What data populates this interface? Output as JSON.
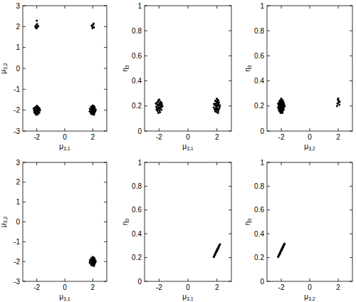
{
  "chart_data": [
    {
      "type": "scatter",
      "x_label": "μ3,1",
      "y_label": "μ3,2",
      "xlim": [
        -3,
        3
      ],
      "ylim": [
        -3,
        3
      ],
      "xticks": [
        -2,
        0,
        2
      ],
      "yticks": [
        -3,
        -2,
        -1,
        0,
        1,
        2,
        3
      ],
      "color": "#000000",
      "marker": "dot",
      "x": [
        -2,
        -2.12,
        -1.85,
        -1.94,
        -2.08,
        -1.8,
        -2.19,
        -1.97,
        -1.89,
        -2.04,
        -2.15,
        -1.83,
        -1.91,
        -2.02,
        -1.95,
        -2.07,
        -1.87,
        -2.11,
        -1.98,
        -2.22,
        -1.77,
        -1.93,
        -2.05,
        -1.9,
        -2.13,
        -1.99,
        -2.09,
        -1.82,
        -2.17,
        -1.96,
        2.01,
        2.04,
        1.97,
        2.11,
        1.9,
        2.05,
        1.98,
        1.84,
        2.14,
        2.18,
        2.1,
        1.88,
        1.94,
        1.95,
        2.04,
        2.02,
        2.02,
        1.85,
        2.21,
        2.08,
        1.99,
        1.8,
        1.78,
        2.09,
        1.94,
        2.07,
        2.14,
        2.1,
        1.89,
        1.9,
        -2.05,
        -1.95,
        -2.1,
        -1.98,
        -2.02,
        -1.9,
        -2.08,
        -2,
        1.95,
        2.03,
        2.08,
        1.98,
        2.05,
        1.92
      ],
      "values": [
        -1.99,
        -1.96,
        -2.03,
        -1.89,
        -2.1,
        -1.95,
        -2.02,
        -2.16,
        -1.86,
        -1.82,
        -1.9,
        -2.12,
        -2.06,
        -2.05,
        -1.96,
        -1.98,
        -1.98,
        -2.15,
        -1.79,
        -1.92,
        -2.01,
        -2.2,
        -2.22,
        -1.91,
        -2.06,
        -1.93,
        -1.86,
        -1.9,
        -2.11,
        -2.1,
        -2,
        -2.12,
        -1.85,
        -1.94,
        -2.08,
        -1.8,
        -2.19,
        -1.97,
        -1.89,
        -2.04,
        -2.15,
        -1.83,
        -1.91,
        -2.02,
        -1.95,
        -2.07,
        -1.87,
        -2.11,
        -1.98,
        -2.22,
        -1.77,
        -1.93,
        -2.05,
        -1.9,
        -2.13,
        -1.99,
        -2.09,
        -1.82,
        -2.17,
        -1.96,
        2.05,
        1.98,
        2.01,
        2.12,
        1.92,
        2.03,
        1.96,
        2.28,
        2.02,
        2.1,
        1.97,
        1.93,
        2.15,
        2.05
      ]
    },
    {
      "type": "scatter",
      "x_label": "μ3,1",
      "y_label": "η3",
      "xlim": [
        -3,
        3
      ],
      "ylim": [
        0,
        1
      ],
      "xticks": [
        -2,
        0,
        2
      ],
      "yticks": [
        0,
        0.2,
        0.4,
        0.6,
        0.8,
        1
      ],
      "color": "#000000",
      "marker": "dot",
      "x": [
        -2,
        -2.12,
        -1.85,
        -1.94,
        -2.08,
        -1.8,
        -2.19,
        -1.97,
        -1.89,
        -2.04,
        -2.15,
        -1.83,
        -1.91,
        -2.02,
        -1.95,
        -2.07,
        -1.87,
        -2.11,
        -1.98,
        -2.22,
        -1.77,
        -1.93,
        -2.05,
        -1.9,
        -2.13,
        -1.99,
        -2.09,
        -1.82,
        -2.17,
        -1.96,
        2.01,
        2.04,
        1.97,
        2.11,
        1.9,
        2.05,
        1.98,
        1.84,
        2.14,
        2.18,
        2.1,
        1.88,
        1.94,
        1.95,
        2.04,
        2.02,
        2.02,
        1.85,
        2.21,
        2.08,
        1.99,
        1.8,
        1.78,
        2.09,
        1.94,
        2.07,
        2.14,
        2.1,
        1.89,
        1.9
      ],
      "values": [
        0.202,
        0.21,
        0.192,
        0.228,
        0.175,
        0.212,
        0.195,
        0.16,
        0.235,
        0.245,
        0.225,
        0.17,
        0.185,
        0.188,
        0.21,
        0.205,
        0.205,
        0.162,
        0.252,
        0.22,
        0.198,
        0.15,
        0.145,
        0.222,
        0.185,
        0.218,
        0.235,
        0.225,
        0.172,
        0.175,
        0.2,
        0.17,
        0.238,
        0.215,
        0.18,
        0.25,
        0.152,
        0.208,
        0.228,
        0.19,
        0.162,
        0.242,
        0.222,
        0.195,
        0.212,
        0.182,
        0.232,
        0.172,
        0.205,
        0.145,
        0.258,
        0.218,
        0.188,
        0.225,
        0.168,
        0.202,
        0.178,
        0.245,
        0.158,
        0.21
      ]
    },
    {
      "type": "scatter",
      "x_label": "μ3,2",
      "y_label": "η3",
      "xlim": [
        -3,
        3
      ],
      "ylim": [
        0,
        1
      ],
      "xticks": [
        -2,
        0,
        2
      ],
      "yticks": [
        0,
        0.2,
        0.4,
        0.6,
        0.8,
        1
      ],
      "color": "#000000",
      "marker": "dot",
      "x": [
        -1.99,
        -1.96,
        -2.03,
        -1.89,
        -2.1,
        -1.95,
        -2.02,
        -2.16,
        -1.86,
        -1.82,
        -1.9,
        -2.12,
        -2.06,
        -2.05,
        -1.96,
        -1.98,
        -1.98,
        -2.15,
        -1.79,
        -1.92,
        -2.01,
        -2.2,
        -2.22,
        -1.91,
        -2.06,
        -1.93,
        -1.86,
        -1.9,
        -2.11,
        -2.1,
        -2,
        -2.12,
        -1.85,
        -1.94,
        -2.08,
        -1.8,
        -2.19,
        -1.97,
        -1.89,
        -2.04,
        -2.15,
        -1.83,
        -1.91,
        -2.02,
        -1.95,
        -2.07,
        -1.87,
        -2.11,
        -1.98,
        -2.22,
        -1.77,
        -1.93,
        -2.05,
        -1.9,
        -2.13,
        -1.99,
        -2.09,
        -1.82,
        -2.17,
        -1.96,
        1.95,
        2.03,
        2.08,
        1.98,
        2.05,
        1.92,
        2,
        2.1
      ],
      "values": [
        0.2,
        0.17,
        0.238,
        0.215,
        0.18,
        0.25,
        0.152,
        0.208,
        0.228,
        0.19,
        0.162,
        0.242,
        0.222,
        0.195,
        0.212,
        0.182,
        0.232,
        0.172,
        0.205,
        0.145,
        0.258,
        0.218,
        0.188,
        0.225,
        0.168,
        0.202,
        0.178,
        0.245,
        0.158,
        0.21,
        0.202,
        0.21,
        0.192,
        0.228,
        0.175,
        0.212,
        0.195,
        0.16,
        0.235,
        0.245,
        0.225,
        0.17,
        0.185,
        0.188,
        0.21,
        0.205,
        0.205,
        0.162,
        0.252,
        0.22,
        0.198,
        0.15,
        0.145,
        0.222,
        0.185,
        0.218,
        0.235,
        0.225,
        0.172,
        0.175,
        0.22,
        0.24,
        0.21,
        0.25,
        0.23,
        0.2,
        0.26,
        0.235
      ]
    },
    {
      "type": "scatter",
      "x_label": "μ3,1",
      "y_label": "μ3,2",
      "xlim": [
        -3,
        3
      ],
      "ylim": [
        -3,
        3
      ],
      "xticks": [
        -2,
        0,
        2
      ],
      "yticks": [
        -3,
        -2,
        -1,
        0,
        1,
        2,
        3
      ],
      "color": "#000000",
      "marker": "dot",
      "x": [
        2.01,
        2.04,
        1.97,
        2.11,
        1.9,
        2.05,
        1.98,
        1.84,
        2.14,
        2.18,
        2.1,
        1.88,
        1.94,
        1.95,
        2.04,
        2.02,
        2.02,
        1.85,
        2.21,
        2.08,
        1.99,
        1.8,
        1.78,
        2.09,
        1.94,
        2.07,
        2.14,
        2.1,
        1.89,
        1.9
      ],
      "values": [
        -2,
        -2.12,
        -1.85,
        -1.94,
        -2.08,
        -1.8,
        -2.19,
        -1.97,
        -1.89,
        -2.04,
        -2.15,
        -1.83,
        -1.91,
        -2.02,
        -1.95,
        -2.07,
        -1.87,
        -2.11,
        -1.98,
        -2.22,
        -1.77,
        -1.93,
        -2.05,
        -1.9,
        -2.13,
        -1.99,
        -2.09,
        -1.82,
        -2.17,
        -1.96
      ]
    },
    {
      "type": "scatter",
      "x_label": "μ3,1",
      "y_label": "η3",
      "xlim": [
        -3,
        3
      ],
      "ylim": [
        0,
        1
      ],
      "xticks": [
        -2,
        0,
        2
      ],
      "yticks": [
        0,
        0.2,
        0.4,
        0.6,
        0.8,
        1
      ],
      "color": "#000000",
      "marker": "dot",
      "x": [
        2.01,
        2.04,
        1.97,
        2.11,
        1.9,
        2.05,
        1.98,
        1.84,
        2.14,
        2.18,
        2.1,
        1.88,
        1.94,
        1.95,
        2.04,
        2.02,
        2.02,
        1.85,
        2.21,
        2.08,
        1.99,
        1.8,
        1.78,
        2.09,
        1.94,
        2.07,
        2.14,
        2.1,
        1.89,
        1.9
      ],
      "values": [
        0.262,
        0.27,
        0.252,
        0.288,
        0.235,
        0.272,
        0.255,
        0.22,
        0.295,
        0.305,
        0.285,
        0.23,
        0.245,
        0.248,
        0.27,
        0.265,
        0.265,
        0.222,
        0.312,
        0.28,
        0.258,
        0.21,
        0.205,
        0.282,
        0.245,
        0.278,
        0.295,
        0.285,
        0.232,
        0.235
      ]
    },
    {
      "type": "scatter",
      "x_label": "μ3,2",
      "y_label": "η3",
      "xlim": [
        -3,
        3
      ],
      "ylim": [
        0,
        1
      ],
      "xticks": [
        -2,
        0,
        2
      ],
      "yticks": [
        0,
        0.2,
        0.4,
        0.6,
        0.8,
        1
      ],
      "color": "#000000",
      "marker": "dot",
      "x": [
        -2,
        -2.12,
        -1.85,
        -1.94,
        -2.08,
        -1.8,
        -2.19,
        -1.97,
        -1.89,
        -2.04,
        -2.15,
        -1.83,
        -1.91,
        -2.02,
        -1.95,
        -2.07,
        -1.87,
        -2.11,
        -1.98,
        -2.22,
        -1.77,
        -1.93,
        -2.05,
        -1.9,
        -2.13,
        -1.99,
        -2.09,
        -1.82,
        -2.17,
        -1.96
      ],
      "values": [
        0.26,
        0.23,
        0.298,
        0.275,
        0.24,
        0.31,
        0.212,
        0.268,
        0.288,
        0.25,
        0.222,
        0.302,
        0.282,
        0.255,
        0.272,
        0.242,
        0.292,
        0.232,
        0.265,
        0.205,
        0.318,
        0.278,
        0.248,
        0.285,
        0.228,
        0.262,
        0.238,
        0.305,
        0.218,
        0.27
      ]
    }
  ]
}
